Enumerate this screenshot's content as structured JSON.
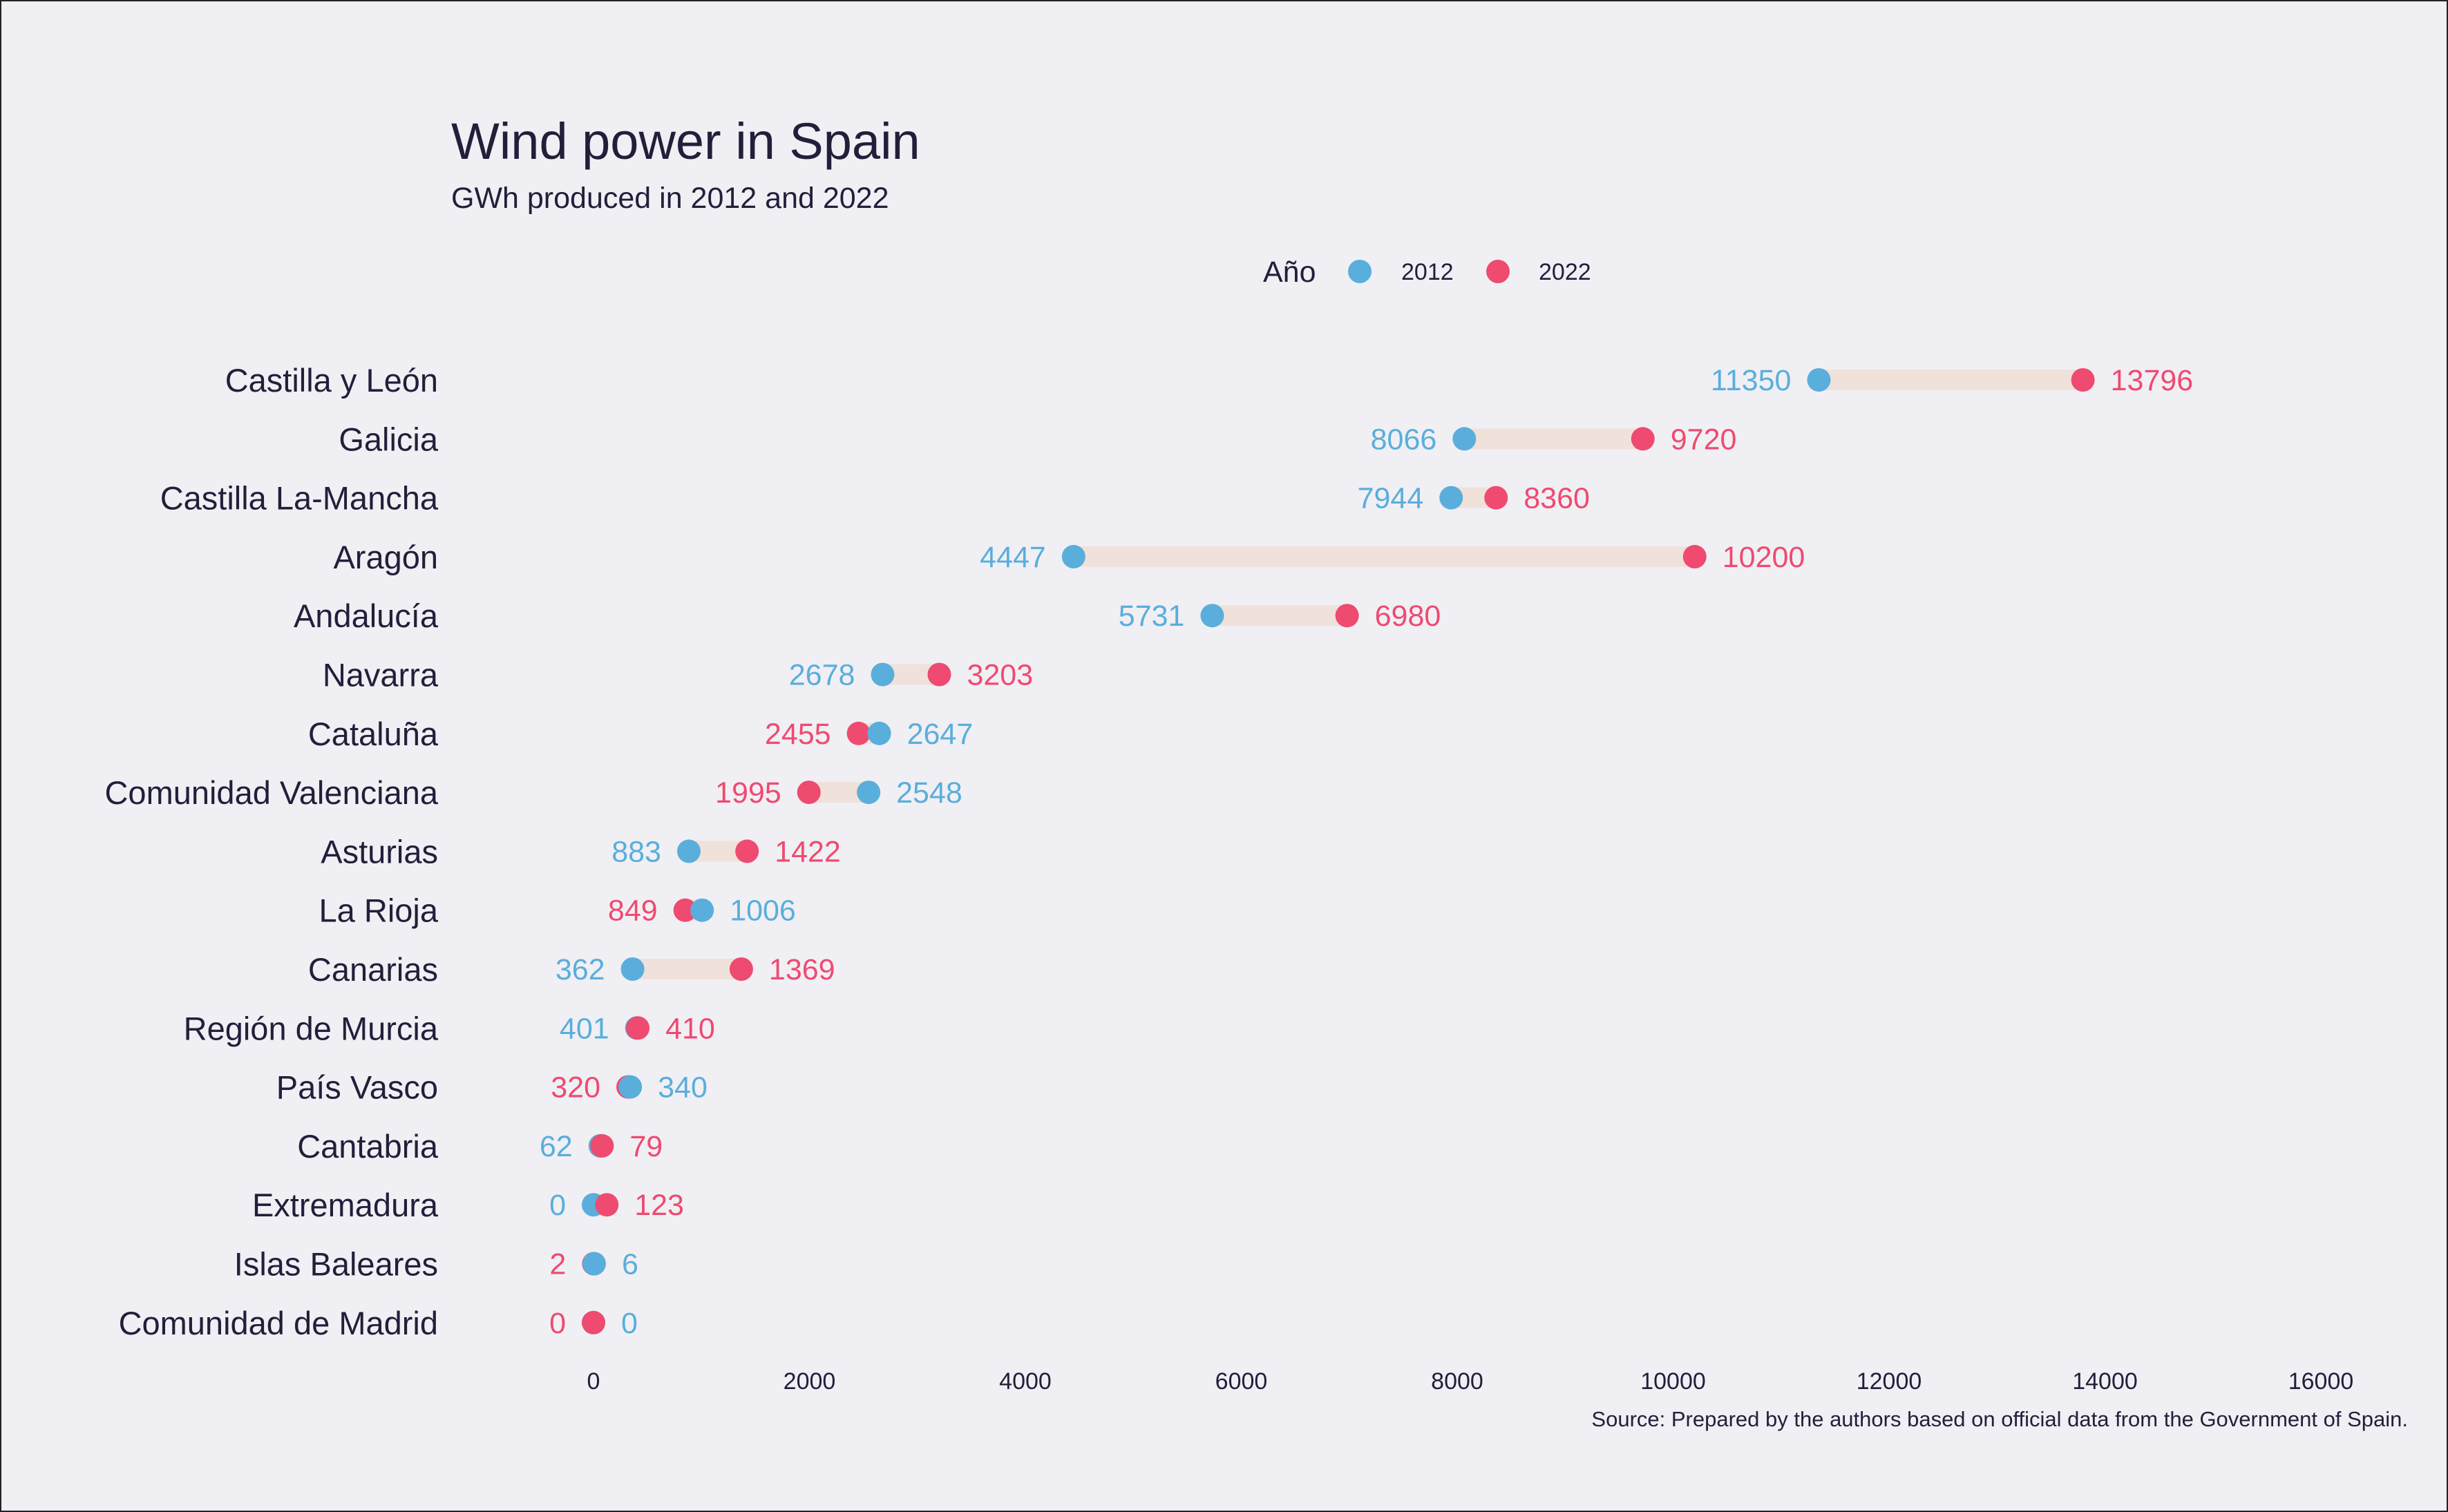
{
  "chart_data": {
    "type": "dumbbell",
    "title": "Wind power in Spain",
    "subtitle": "GWh produced in 2012 and 2022",
    "legend": {
      "title": "Año",
      "placement": "top-center",
      "entries": [
        {
          "label": "2012",
          "color": "#5aaedb"
        },
        {
          "label": "2022",
          "color": "#ef4a70"
        }
      ]
    },
    "colors": {
      "y2012": "#5aaedb",
      "y2022": "#ef4a70",
      "bar": "#f0e1da",
      "text": "#221f3a",
      "background": "#f0eff4"
    },
    "xlim": [
      0,
      16000
    ],
    "x_ticks": [
      "0",
      "2000",
      "4000",
      "6000",
      "8000",
      "10000",
      "12000",
      "14000",
      "16000"
    ],
    "grid": false,
    "categories": [
      "Castilla y León",
      "Galicia",
      "Castilla La-Mancha",
      "Aragón",
      "Andalucía",
      "Navarra",
      "Cataluña",
      "Comunidad Valenciana",
      "Asturias",
      "La Rioja",
      "Canarias",
      "Región de Murcia",
      "País Vasco",
      "Cantabria",
      "Extremadura",
      "Islas Baleares",
      "Comunidad de Madrid"
    ],
    "series": [
      {
        "name": "2012",
        "values": [
          11350,
          8066,
          7944,
          4447,
          5731,
          2678,
          2647,
          2548,
          883,
          1006,
          362,
          401,
          340,
          62,
          0,
          6,
          0
        ]
      },
      {
        "name": "2022",
        "values": [
          13796,
          9720,
          8360,
          10200,
          6980,
          3203,
          2455,
          1995,
          1422,
          849,
          1369,
          410,
          320,
          79,
          123,
          2,
          0
        ]
      }
    ],
    "source": "Source: Prepared by the authors based on official data from the Government of Spain."
  }
}
